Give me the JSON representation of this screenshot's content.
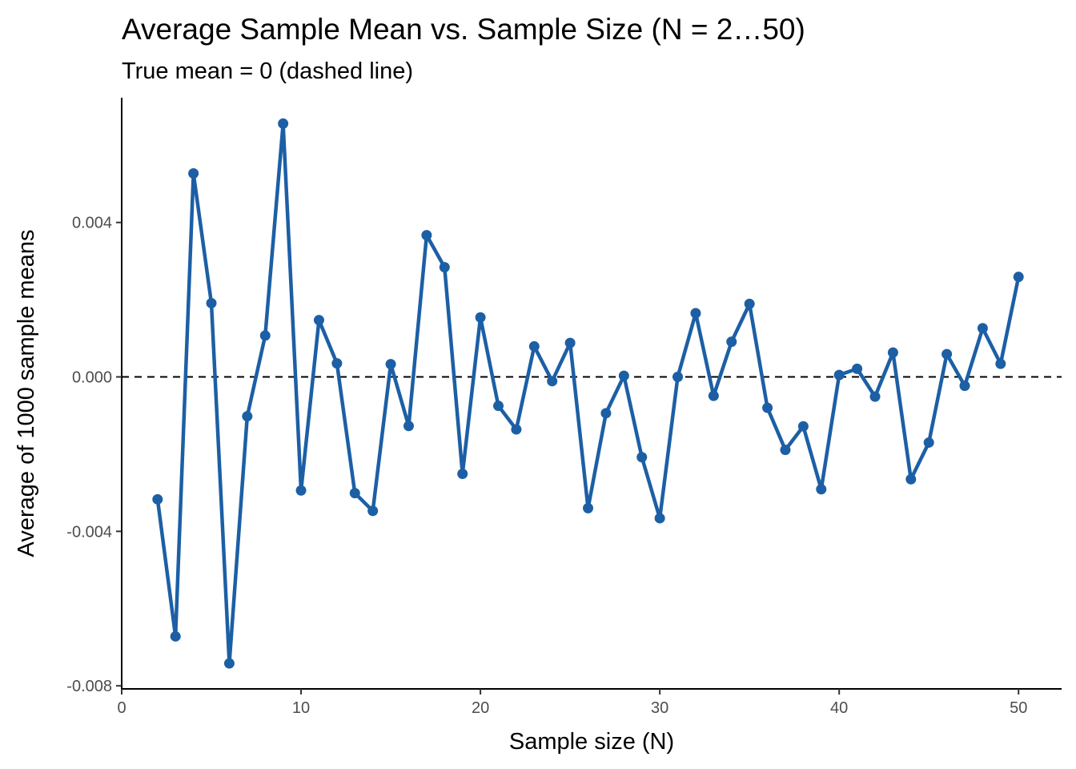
{
  "chart_data": {
    "type": "line",
    "title": "Average Sample Mean vs. Sample Size (N = 2…50)",
    "subtitle": "True mean = 0 (dashed line)",
    "xlabel": "Sample size (N)",
    "ylabel": "Average of 1000 sample means",
    "xlim": [
      0,
      52.4
    ],
    "ylim": [
      -0.00808,
      0.00723
    ],
    "x_ticks": [
      0,
      10,
      20,
      30,
      40,
      50
    ],
    "x_tick_labels": [
      "0",
      "10",
      "20",
      "30",
      "40",
      "50"
    ],
    "y_ticks": [
      -0.008,
      -0.004,
      0.0,
      0.004
    ],
    "y_tick_labels": [
      "-0.008",
      "-0.004",
      "0.000",
      "0.004"
    ],
    "reference_line": {
      "y": 0,
      "style": "dashed",
      "color": "#000000"
    },
    "grid": false,
    "legend": "none",
    "series": [
      {
        "color": "#1c5fa5",
        "x": [
          2,
          3,
          4,
          5,
          6,
          7,
          8,
          9,
          10,
          11,
          12,
          13,
          14,
          15,
          16,
          17,
          18,
          19,
          20,
          21,
          22,
          23,
          24,
          25,
          26,
          27,
          28,
          29,
          30,
          31,
          32,
          33,
          34,
          35,
          36,
          37,
          38,
          39,
          40,
          41,
          42,
          43,
          44,
          45,
          46,
          47,
          48,
          49,
          50
        ],
        "y": [
          -0.00317,
          -0.00672,
          0.00527,
          0.00191,
          -0.00742,
          -0.00102,
          0.00107,
          0.00656,
          -0.00294,
          0.00147,
          0.00035,
          -0.00301,
          -0.00347,
          0.00033,
          -0.00127,
          0.00367,
          0.00284,
          -0.00251,
          0.00154,
          -0.00075,
          -0.00136,
          0.00079,
          -0.00011,
          0.00088,
          -0.0034,
          -0.00094,
          3e-05,
          -0.00208,
          -0.00366,
          0.0,
          0.00165,
          -0.00049,
          0.00091,
          0.00189,
          -0.0008,
          -0.00189,
          -0.00128,
          -0.00291,
          5e-05,
          0.00021,
          -0.00051,
          0.00063,
          -0.00265,
          -0.0017,
          0.00059,
          -0.00023,
          0.00126,
          0.00034,
          0.00259
        ]
      }
    ]
  }
}
